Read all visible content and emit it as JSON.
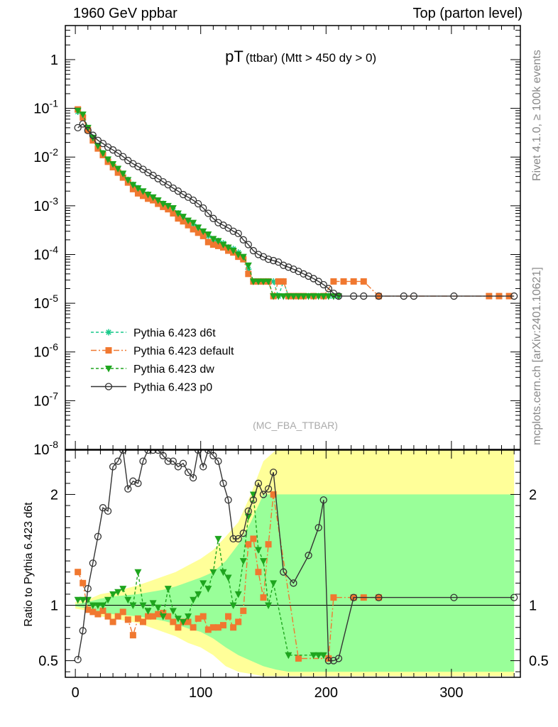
{
  "header": {
    "left": "1960 GeV ppbar",
    "right": "Top (parton level)"
  },
  "side_labels": {
    "rivet": "Rivet 4.1.0, ≥ 100k events",
    "mcplots": "mcplots.cern.ch [arXiv:2401.10621]"
  },
  "chart_data": {
    "type": "line",
    "title": "pT (ttbar) (Mtt > 450 dy > 0)",
    "title_main": "pT",
    "title_sub": "(ttbar) (Mtt > 450 dy > 0)",
    "watermark": "(MC_FBA_TTBAR)",
    "xlabel": "",
    "ylabel": "",
    "xlim": [
      -8,
      355
    ],
    "ylim": [
      1e-08,
      5
    ],
    "yscale": "log",
    "x_ticks": [
      "0",
      "100",
      "200",
      "300"
    ],
    "y_ticks": [
      "10^-8",
      "10^-7",
      "10^-6",
      "10^-5",
      "10^-4",
      "10^-3",
      "10^-2",
      "10^-1",
      "1"
    ],
    "legend_position": "lower-left",
    "series": [
      {
        "name": "Pythia 6.423 d6t",
        "color": "#17c98a",
        "marker": "star",
        "dash": "4,3",
        "x": [
          2,
          6,
          10,
          14,
          18,
          22,
          26,
          30,
          34,
          38,
          42,
          46,
          50,
          54,
          58,
          62,
          66,
          70,
          74,
          78,
          82,
          86,
          90,
          94,
          98,
          102,
          106,
          110,
          114,
          118,
          122,
          126,
          130,
          134,
          138,
          142,
          146,
          150,
          154,
          158,
          162,
          166,
          170,
          174,
          178,
          182,
          186,
          190,
          194,
          198,
          202,
          206,
          210
        ],
        "y": [
          0.085,
          0.07,
          0.038,
          0.025,
          0.017,
          0.012,
          0.0085,
          0.0066,
          0.0052,
          0.0042,
          0.0034,
          0.0027,
          0.0023,
          0.0019,
          0.0017,
          0.0014,
          0.0012,
          0.0011,
          0.00095,
          0.0008,
          0.0007,
          0.00055,
          0.00048,
          0.00042,
          0.00032,
          0.00028,
          0.00024,
          0.0002,
          0.00019,
          0.00017,
          0.00014,
          0.00013,
          0.00011,
          8e-05,
          5e-05,
          2.8e-05,
          2.8e-05,
          2.8e-05,
          2.8e-05,
          2.8e-05,
          1.4e-05,
          2.8e-05,
          1.4e-05,
          1.4e-05,
          1.4e-05,
          1.4e-05,
          1.4e-05,
          1.4e-05,
          1.4e-05,
          1.4e-05,
          1.4e-05,
          1.4e-05,
          1.4e-05
        ]
      },
      {
        "name": "Pythia 6.423 default",
        "color": "#f07830",
        "marker": "square",
        "dash": "8,3,2,3",
        "x": [
          2,
          6,
          10,
          14,
          18,
          22,
          26,
          30,
          34,
          38,
          42,
          46,
          50,
          54,
          58,
          62,
          66,
          70,
          74,
          78,
          82,
          86,
          90,
          94,
          98,
          102,
          106,
          110,
          114,
          118,
          122,
          126,
          130,
          134,
          138,
          142,
          146,
          150,
          154,
          158,
          162,
          166,
          170,
          174,
          178,
          182,
          190,
          198,
          206,
          214,
          222,
          230,
          242,
          330,
          338,
          346
        ],
        "y": [
          0.095,
          0.065,
          0.036,
          0.022,
          0.015,
          0.011,
          0.008,
          0.0062,
          0.0048,
          0.0038,
          0.003,
          0.0022,
          0.0018,
          0.0016,
          0.0014,
          0.0013,
          0.0011,
          0.00095,
          0.00085,
          0.0007,
          0.00055,
          0.00048,
          0.0004,
          0.00033,
          0.00028,
          0.00024,
          0.00018,
          0.00016,
          0.00015,
          0.00014,
          0.00012,
          0.00011,
          9e-05,
          8e-05,
          4e-05,
          2.8e-05,
          2.8e-05,
          2.8e-05,
          2.8e-05,
          1.4e-05,
          2.8e-05,
          2.8e-05,
          1.4e-05,
          1.4e-05,
          1.4e-05,
          1.4e-05,
          1.4e-05,
          1.4e-05,
          2.8e-05,
          2.8e-05,
          2.8e-05,
          2.8e-05,
          1.4e-05,
          1.4e-05,
          1.4e-05,
          1.4e-05
        ]
      },
      {
        "name": "Pythia 6.423 dw",
        "color": "#1ea51e",
        "marker": "triangle-down",
        "dash": "4,3",
        "x": [
          2,
          6,
          10,
          14,
          18,
          22,
          26,
          30,
          34,
          38,
          42,
          46,
          50,
          54,
          58,
          62,
          66,
          70,
          74,
          78,
          82,
          86,
          90,
          94,
          98,
          102,
          106,
          110,
          114,
          118,
          122,
          126,
          130,
          134,
          138,
          142,
          146,
          150,
          154,
          158,
          162,
          166,
          170,
          174,
          178,
          182,
          186,
          190,
          194,
          198,
          202,
          206,
          210
        ],
        "y": [
          0.09,
          0.075,
          0.04,
          0.025,
          0.017,
          0.012,
          0.009,
          0.0072,
          0.0058,
          0.0046,
          0.0034,
          0.0027,
          0.0023,
          0.002,
          0.0017,
          0.0015,
          0.0013,
          0.0011,
          0.001,
          0.0009,
          0.0007,
          0.0006,
          0.0005,
          0.00045,
          0.00036,
          0.0003,
          0.00026,
          0.00021,
          0.00019,
          0.00016,
          0.00014,
          0.00012,
          0.0001,
          9e-05,
          6e-05,
          2.8e-05,
          2.8e-05,
          2.8e-05,
          2.8e-05,
          1.4e-05,
          1.4e-05,
          1.4e-05,
          1.4e-05,
          1.4e-05,
          1.4e-05,
          1.4e-05,
          1.4e-05,
          1.4e-05,
          1.4e-05,
          1.4e-05,
          1.4e-05,
          1.4e-05,
          1.4e-05
        ]
      },
      {
        "name": "Pythia 6.423 p0",
        "color": "#333333",
        "marker": "circle-open",
        "dash": "",
        "x": [
          2,
          6,
          10,
          14,
          18,
          22,
          26,
          30,
          34,
          38,
          42,
          46,
          50,
          54,
          58,
          62,
          66,
          70,
          74,
          78,
          82,
          86,
          90,
          94,
          98,
          102,
          106,
          110,
          114,
          118,
          122,
          126,
          130,
          134,
          138,
          142,
          146,
          150,
          154,
          158,
          162,
          166,
          170,
          174,
          178,
          182,
          186,
          190,
          194,
          198,
          202,
          206,
          210,
          222,
          230,
          242,
          262,
          270,
          302,
          350
        ],
        "y": [
          0.04,
          0.048,
          0.035,
          0.028,
          0.022,
          0.019,
          0.016,
          0.014,
          0.012,
          0.0102,
          0.0085,
          0.0073,
          0.0064,
          0.0056,
          0.0048,
          0.0042,
          0.0036,
          0.0031,
          0.0027,
          0.0023,
          0.002,
          0.0017,
          0.0015,
          0.0013,
          0.0011,
          0.0009,
          0.0007,
          0.00055,
          0.00045,
          0.0004,
          0.00035,
          0.0003,
          0.00027,
          0.0002,
          0.00016,
          0.00012,
          0.0001,
          9e-05,
          8e-05,
          7.5e-05,
          7e-05,
          6e-05,
          5.5e-05,
          5e-05,
          4.5e-05,
          4e-05,
          3.6e-05,
          3.2e-05,
          2.8e-05,
          2.4e-05,
          2e-05,
          1.6e-05,
          1.4e-05,
          1.4e-05,
          1.4e-05,
          1.4e-05,
          1.4e-05,
          1.4e-05,
          1.4e-05,
          1.4e-05
        ]
      }
    ],
    "ratio": {
      "ylabel": "Ratio to Pythia 6.423 d6t",
      "ylim": [
        0.35,
        2.4
      ],
      "y_ticks": [
        0.5,
        1,
        2
      ],
      "y_tick_labels": [
        "0.5",
        "1",
        "2"
      ],
      "reference": 1,
      "band_x": [
        0,
        10,
        20,
        30,
        40,
        50,
        60,
        70,
        80,
        90,
        100,
        110,
        120,
        130,
        140,
        150,
        160,
        170,
        180,
        190,
        200,
        210,
        220,
        230,
        240,
        250,
        300,
        350
      ],
      "band_yellow_low": [
        0.97,
        0.95,
        0.9,
        0.88,
        0.86,
        0.84,
        0.8,
        0.76,
        0.72,
        0.66,
        0.62,
        0.55,
        0.45,
        0.4,
        0.38,
        0.36,
        0.36,
        0.36,
        0.36,
        0.36,
        0.36,
        0.36,
        0.36,
        0.36,
        0.36,
        0.36,
        0.36,
        0.36
      ],
      "band_yellow_high": [
        1.03,
        1.05,
        1.1,
        1.12,
        1.15,
        1.18,
        1.22,
        1.26,
        1.3,
        1.36,
        1.42,
        1.5,
        1.62,
        1.75,
        2.0,
        2.3,
        2.4,
        2.4,
        2.4,
        2.4,
        2.4,
        2.4,
        2.4,
        2.4,
        2.4,
        2.4,
        2.4,
        2.4
      ],
      "band_green_low": [
        0.99,
        0.97,
        0.94,
        0.92,
        0.91,
        0.9,
        0.88,
        0.86,
        0.83,
        0.79,
        0.76,
        0.7,
        0.62,
        0.55,
        0.5,
        0.45,
        0.42,
        0.4,
        0.4,
        0.4,
        0.4,
        0.4,
        0.4,
        0.4,
        0.4,
        0.4,
        0.4,
        0.4
      ],
      "band_green_high": [
        1.01,
        1.03,
        1.06,
        1.08,
        1.09,
        1.1,
        1.12,
        1.14,
        1.17,
        1.21,
        1.25,
        1.3,
        1.4,
        1.55,
        1.75,
        2.0,
        2.0,
        2.0,
        2.0,
        2.0,
        2.0,
        2.0,
        2.0,
        2.0,
        2.0,
        2.0,
        2.0,
        2.0
      ],
      "series": [
        {
          "name": "Pythia 6.423 default",
          "color": "#f07830",
          "marker": "square",
          "dash": "8,3,2,3",
          "x": [
            2,
            6,
            10,
            14,
            18,
            22,
            26,
            30,
            34,
            38,
            42,
            46,
            50,
            54,
            58,
            62,
            66,
            70,
            74,
            78,
            82,
            86,
            90,
            94,
            98,
            102,
            106,
            110,
            114,
            118,
            122,
            126,
            130,
            134,
            138,
            142,
            146,
            150,
            154,
            158,
            178,
            202,
            206,
            222,
            230,
            242
          ],
          "y": [
            1.3,
            1.2,
            0.96,
            0.94,
            0.92,
            0.95,
            0.9,
            0.85,
            0.9,
            0.94,
            0.87,
            0.73,
            0.88,
            0.85,
            0.9,
            0.9,
            0.92,
            0.93,
            0.9,
            0.85,
            0.8,
            0.85,
            0.85,
            0.8,
            0.88,
            0.9,
            0.78,
            0.8,
            0.8,
            0.82,
            0.9,
            0.8,
            0.85,
            0.95,
            1.55,
            1.6,
            1.3,
            1.07,
            1.55,
            2.0,
            0.52,
            0.52,
            1.07,
            1.07,
            1.07,
            1.07
          ]
        },
        {
          "name": "Pythia 6.423 dw",
          "color": "#1ea51e",
          "marker": "triangle-down",
          "dash": "4,3",
          "x": [
            2,
            6,
            10,
            14,
            18,
            22,
            26,
            30,
            34,
            38,
            42,
            46,
            50,
            54,
            58,
            62,
            66,
            70,
            74,
            78,
            82,
            86,
            90,
            94,
            98,
            102,
            106,
            110,
            114,
            118,
            122,
            126,
            130,
            134,
            138,
            142,
            146,
            150,
            154,
            158,
            170,
            190,
            194,
            198
          ],
          "y": [
            1.05,
            1.05,
            1.05,
            1.0,
            1.0,
            1.0,
            1.05,
            1.1,
            1.12,
            1.15,
            1.05,
            1.0,
            1.3,
            1.0,
            0.95,
            1.02,
            0.98,
            0.9,
            1.15,
            0.95,
            0.88,
            0.85,
            0.9,
            1.05,
            1.1,
            1.2,
            1.15,
            1.3,
            1.6,
            1.3,
            1.25,
            1.0,
            1.1,
            1.4,
            1.8,
            2.0,
            1.5,
            1.4,
            1.0,
            1.2,
            0.55,
            0.55,
            0.55,
            0.55
          ]
        },
        {
          "name": "Pythia 6.423 p0",
          "color": "#333333",
          "marker": "circle-open",
          "dash": "",
          "x": [
            2,
            6,
            10,
            14,
            18,
            22,
            26,
            30,
            34,
            38,
            42,
            46,
            50,
            54,
            58,
            62,
            66,
            70,
            74,
            78,
            82,
            86,
            90,
            94,
            98,
            102,
            106,
            110,
            114,
            118,
            122,
            126,
            130,
            134,
            138,
            142,
            146,
            150,
            154,
            158,
            166,
            174,
            186,
            194,
            198,
            202,
            206,
            210,
            222,
            242,
            302,
            350
          ],
          "y": [
            0.51,
            0.77,
            1.15,
            1.38,
            1.62,
            1.88,
            1.85,
            2.25,
            2.3,
            2.4,
            2.05,
            2.12,
            2.1,
            2.3,
            2.4,
            2.4,
            2.4,
            2.35,
            2.3,
            2.3,
            2.25,
            2.28,
            2.2,
            2.15,
            2.4,
            2.25,
            2.4,
            2.35,
            2.3,
            2.1,
            1.95,
            1.6,
            1.6,
            1.65,
            1.85,
            1.95,
            2.1,
            2.0,
            2.05,
            2.2,
            1.3,
            1.2,
            1.45,
            1.7,
            1.95,
            0.5,
            0.5,
            0.52,
            1.07,
            1.07,
            1.07,
            1.07
          ]
        }
      ]
    }
  }
}
